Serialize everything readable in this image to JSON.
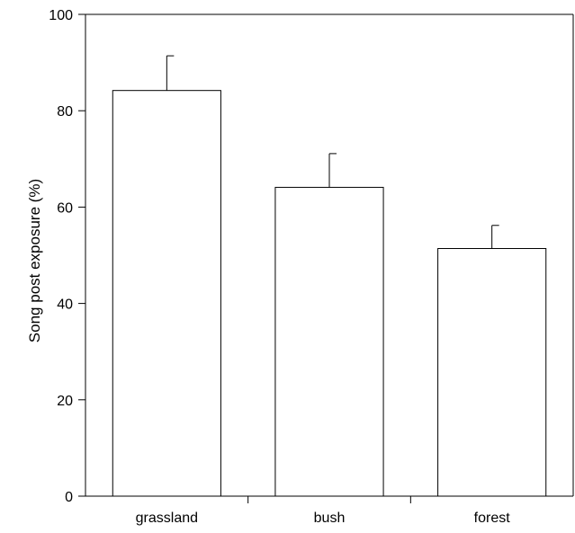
{
  "chart_data": {
    "type": "bar",
    "title": "",
    "xlabel": "",
    "ylabel": "Song post exposure (%)",
    "categories": [
      "grassland",
      "bush",
      "forest"
    ],
    "values": [
      84.2,
      64.1,
      51.4
    ],
    "error_bars": [
      7.2,
      7.0,
      4.8
    ],
    "ylim": [
      0,
      100
    ],
    "yticks": [
      0,
      20,
      40,
      60,
      80,
      100
    ],
    "grid": false,
    "legend": "none",
    "colors": {
      "bar_fill": "#ffffff",
      "bar_stroke": "#000000",
      "axis": "#000000"
    }
  }
}
